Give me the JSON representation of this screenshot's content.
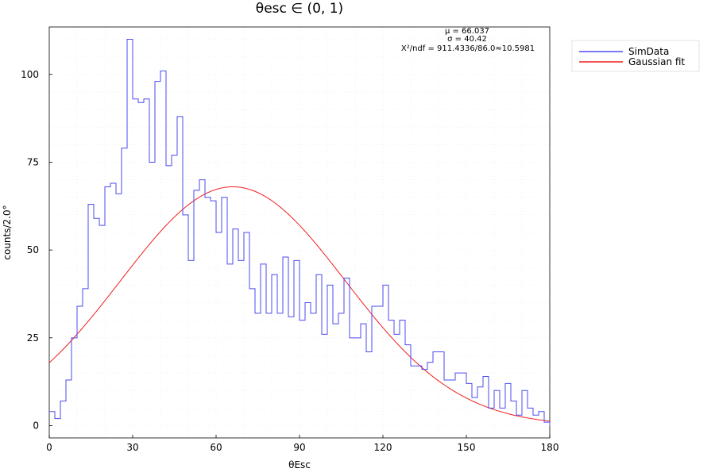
{
  "chart_data": {
    "type": "line",
    "title": "θesc ∈ (0, 1)",
    "xlabel": "θEsc",
    "ylabel": "counts/2.0°",
    "xlim": [
      0,
      180
    ],
    "ylim": [
      -3.5,
      113.5
    ],
    "xticks": [
      0,
      30,
      60,
      90,
      120,
      150,
      180
    ],
    "yticks": [
      0,
      25,
      50,
      75,
      100
    ],
    "grid": true,
    "legend_position": "right-outside-top",
    "annotations": [
      "μ = 66.037",
      "σ = 40.42",
      "X²/ndf = 911.4336/86.0≈10.5981"
    ],
    "bin_width": 2,
    "series": [
      {
        "name": "SimData",
        "style": "step",
        "color": "#4b4bf0",
        "x": [
          0,
          2,
          4,
          6,
          8,
          10,
          12,
          14,
          16,
          18,
          20,
          22,
          24,
          26,
          28,
          30,
          32,
          34,
          36,
          38,
          40,
          42,
          44,
          46,
          48,
          50,
          52,
          54,
          56,
          58,
          60,
          62,
          64,
          66,
          68,
          70,
          72,
          74,
          76,
          78,
          80,
          82,
          84,
          86,
          88,
          90,
          92,
          94,
          96,
          98,
          100,
          102,
          104,
          106,
          108,
          110,
          112,
          114,
          116,
          118,
          120,
          122,
          124,
          126,
          128,
          130,
          132,
          134,
          136,
          138,
          140,
          142,
          144,
          146,
          148,
          150,
          152,
          154,
          156,
          158,
          160,
          162,
          164,
          166,
          168,
          170,
          172,
          174,
          176,
          178
        ],
        "values": [
          4,
          2,
          7,
          13,
          25,
          34,
          39,
          63,
          59,
          57,
          68,
          69,
          66,
          79,
          110,
          93,
          92,
          93,
          75,
          98,
          101,
          74,
          77,
          88,
          60,
          47,
          67,
          70,
          65,
          64,
          55,
          65,
          46,
          56,
          47,
          55,
          39,
          32,
          46,
          32,
          43,
          32,
          48,
          31,
          47,
          30,
          35,
          32,
          43,
          26,
          40,
          29,
          32,
          42,
          25,
          25,
          29,
          21,
          34,
          34,
          40,
          30,
          26,
          30,
          23,
          17,
          17,
          16,
          18,
          21,
          21,
          13,
          13,
          15,
          15,
          12,
          8,
          11,
          14,
          5,
          10,
          5,
          12,
          7,
          3,
          10,
          5,
          3,
          4,
          1
        ]
      },
      {
        "name": "Gaussian fit",
        "style": "curve",
        "color": "#f01e1e",
        "mu": 66.037,
        "sigma": 40.42,
        "amplitude": 68
      }
    ]
  },
  "legend": {
    "items": [
      {
        "label": "SimData",
        "color": "#4b4bf0"
      },
      {
        "label": "Gaussian fit",
        "color": "#f01e1e"
      }
    ]
  }
}
